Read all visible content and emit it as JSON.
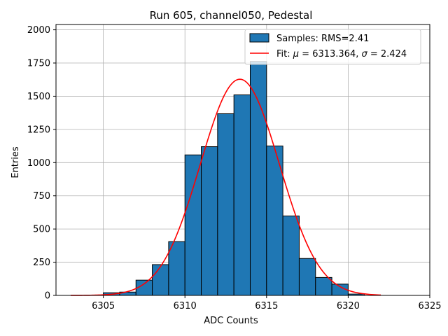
{
  "chart_data": {
    "type": "bar",
    "title": "Run 605, channel050, Pedestal",
    "xlabel": "ADC Counts",
    "ylabel": "Entries",
    "xlim": [
      6302.1,
      6325
    ],
    "ylim": [
      0,
      2040
    ],
    "xticks": [
      6305,
      6310,
      6315,
      6320,
      6325
    ],
    "yticks": [
      0,
      250,
      500,
      750,
      1000,
      1250,
      1500,
      1750,
      2000
    ],
    "grid": true,
    "legend_position": "top-right",
    "bar_color": "#1f77b4",
    "fit_color": "#ff0000",
    "bin_width": 1,
    "bins": [
      {
        "x": 6305,
        "value": 20
      },
      {
        "x": 6306,
        "value": 25
      },
      {
        "x": 6307,
        "value": 115
      },
      {
        "x": 6308,
        "value": 232
      },
      {
        "x": 6309,
        "value": 405
      },
      {
        "x": 6310,
        "value": 1058
      },
      {
        "x": 6311,
        "value": 1120
      },
      {
        "x": 6312,
        "value": 1368
      },
      {
        "x": 6313,
        "value": 1510
      },
      {
        "x": 6314,
        "value": 1762
      },
      {
        "x": 6315,
        "value": 1125
      },
      {
        "x": 6316,
        "value": 598
      },
      {
        "x": 6317,
        "value": 278
      },
      {
        "x": 6318,
        "value": 135
      },
      {
        "x": 6319,
        "value": 85
      },
      {
        "x": 6320,
        "value": 10
      }
    ],
    "fit": {
      "mu": 6313.364,
      "sigma": 2.424,
      "peak": 1628,
      "x_range": [
        6303,
        6322
      ]
    },
    "legend": [
      {
        "label": "Samples: RMS=2.41",
        "kind": "bar"
      },
      {
        "label_prefix": "Fit: ",
        "mu_symbol": "μ",
        "mu_text": " = 6313.364, ",
        "sigma_symbol": "σ",
        "sigma_text": " = 2.424",
        "kind": "line"
      }
    ]
  }
}
